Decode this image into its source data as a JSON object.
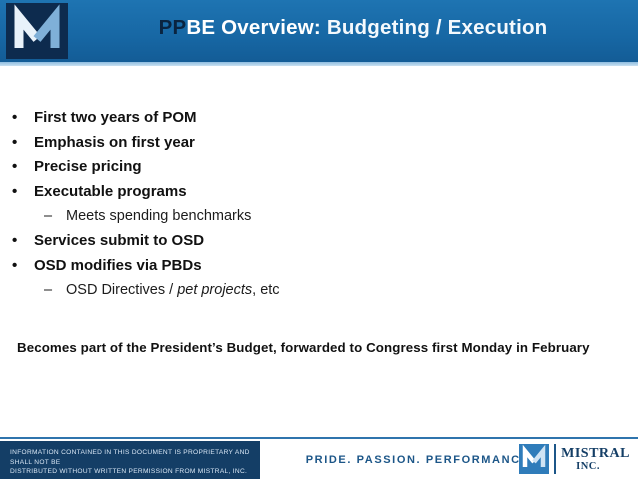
{
  "slide": {
    "header": {
      "title_pp": "PP",
      "title_be": "BE",
      "title_overview": " Overview: ",
      "title_subtitle": "Budgeting / Execution"
    },
    "bullets": [
      {
        "level": 1,
        "marker": "•",
        "segments": [
          {
            "text": "First two years of POM"
          }
        ]
      },
      {
        "level": 1,
        "marker": "•",
        "segments": [
          {
            "text": "Emphasis on first year"
          }
        ]
      },
      {
        "level": 1,
        "marker": "•",
        "segments": [
          {
            "text": "Precise pricing"
          }
        ]
      },
      {
        "level": 1,
        "marker": "•",
        "segments": [
          {
            "text": "Executable programs"
          }
        ]
      },
      {
        "level": 2,
        "marker": "–",
        "segments": [
          {
            "text": "Meets spending benchmarks"
          }
        ]
      },
      {
        "level": 1,
        "marker": "•",
        "segments": [
          {
            "text": "Services submit to OSD"
          }
        ]
      },
      {
        "level": 1,
        "marker": "•",
        "segments": [
          {
            "text": "OSD modifies via PBDs"
          }
        ]
      },
      {
        "level": 2,
        "marker": "–",
        "segments": [
          {
            "text": "OSD Directives / "
          },
          {
            "text": "pet projects",
            "italic": true
          },
          {
            "text": ", etc"
          }
        ]
      }
    ],
    "callout": "Becomes part of the President’s Budget, forwarded to Congress first Monday in February",
    "footer": {
      "disclaimer_line1": "INFORMATION CONTAINED IN THIS DOCUMENT IS PROPRIETARY AND SHALL NOT BE",
      "disclaimer_line2": "DISTRIBUTED WITHOUT WRITTEN PERMISSION FROM MISTRAL, INC.",
      "tagline": "PRIDE. PASSION. PERFORMANCE.",
      "brand_name": "MISTRAL",
      "brand_suffix": "INC."
    },
    "colors": {
      "header_blue": "#1767a4",
      "logo_navy": "#0d2b4e",
      "footer_navy": "#143e66",
      "brand_blue": "#1c5688"
    }
  }
}
